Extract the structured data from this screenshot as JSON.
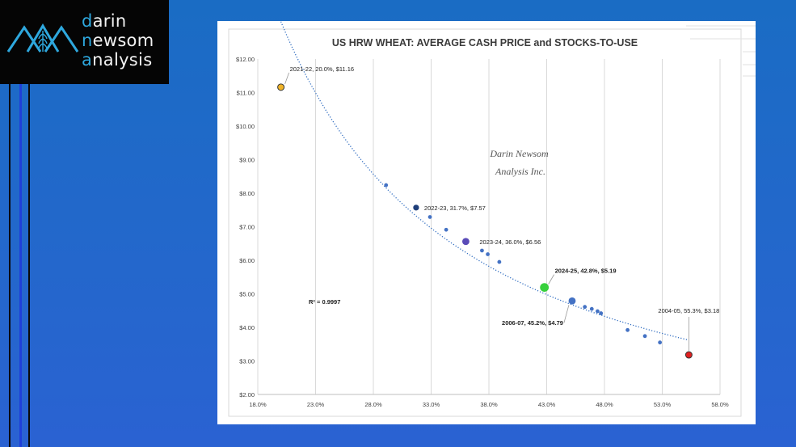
{
  "logo": {
    "lines": [
      {
        "first": "d",
        "rest": "arin"
      },
      {
        "first": "n",
        "rest": "ewsom"
      },
      {
        "first": "a",
        "rest": "nalysis"
      }
    ],
    "accent_color": "#2ea8de"
  },
  "chart_data": {
    "type": "scatter",
    "title": "US HRW WHEAT: AVERAGE CASH PRICE and STOCKS-TO-USE",
    "xlabel": "",
    "ylabel": "",
    "xlim": [
      18.0,
      58.0
    ],
    "ylim": [
      2.0,
      12.0
    ],
    "x_ticks": [
      "18.0%",
      "23.0%",
      "28.0%",
      "33.0%",
      "38.0%",
      "43.0%",
      "48.0%",
      "53.0%",
      "58.0%"
    ],
    "y_ticks": [
      "$2.00",
      "$3.00",
      "$4.00",
      "$5.00",
      "$6.00",
      "$7.00",
      "$8.00",
      "$9.00",
      "$10.00",
      "$11.00",
      "$12.00"
    ],
    "grid": "vertical",
    "trendline": {
      "style": "dotted",
      "color": "#2f6cc0"
    },
    "r_squared_label": "R² = 0.9997",
    "watermark": [
      "Darin Newsom",
      "Analysis Inc."
    ],
    "points": [
      {
        "x": 20.0,
        "y": 11.16,
        "color": "#f0b429",
        "size": "highlight",
        "label": "2021-22, 20.0%, $11.16",
        "bold": false
      },
      {
        "x": 29.1,
        "y": 8.24,
        "color": "#4472c4",
        "size": "small",
        "label": "",
        "bold": false
      },
      {
        "x": 31.7,
        "y": 7.57,
        "color": "#1f3f7a",
        "size": "medium",
        "label": "2022-23, 31.7%, $7.57",
        "bold": false
      },
      {
        "x": 32.9,
        "y": 7.29,
        "color": "#4472c4",
        "size": "small",
        "label": "",
        "bold": false
      },
      {
        "x": 34.3,
        "y": 6.91,
        "color": "#4472c4",
        "size": "small",
        "label": "",
        "bold": false
      },
      {
        "x": 36.0,
        "y": 6.56,
        "color": "#5a4bb8",
        "size": "large",
        "label": "2023-24, 36.0%, $6.56",
        "bold": false
      },
      {
        "x": 37.4,
        "y": 6.29,
        "color": "#4472c4",
        "size": "small",
        "label": "",
        "bold": false
      },
      {
        "x": 37.9,
        "y": 6.18,
        "color": "#4472c4",
        "size": "small",
        "label": "",
        "bold": false
      },
      {
        "x": 38.9,
        "y": 5.95,
        "color": "#4472c4",
        "size": "small",
        "label": "",
        "bold": false
      },
      {
        "x": 42.8,
        "y": 5.19,
        "color": "#37d03c",
        "size": "xlarge",
        "label": "2024-25, 42.8%, $5.19",
        "bold": true
      },
      {
        "x": 45.2,
        "y": 4.79,
        "color": "#4472c4",
        "size": "large",
        "label": "2006-07, 45.2%, $4.79",
        "bold": true
      },
      {
        "x": 46.3,
        "y": 4.61,
        "color": "#4472c4",
        "size": "small",
        "label": "",
        "bold": false
      },
      {
        "x": 46.9,
        "y": 4.55,
        "color": "#4472c4",
        "size": "small",
        "label": "",
        "bold": false
      },
      {
        "x": 47.4,
        "y": 4.48,
        "color": "#4472c4",
        "size": "small",
        "label": "",
        "bold": false
      },
      {
        "x": 47.7,
        "y": 4.42,
        "color": "#4472c4",
        "size": "small",
        "label": "",
        "bold": false
      },
      {
        "x": 50.0,
        "y": 3.92,
        "color": "#4472c4",
        "size": "small",
        "label": "",
        "bold": false
      },
      {
        "x": 51.5,
        "y": 3.74,
        "color": "#4472c4",
        "size": "small",
        "label": "",
        "bold": false
      },
      {
        "x": 52.8,
        "y": 3.55,
        "color": "#4472c4",
        "size": "small",
        "label": "",
        "bold": false
      },
      {
        "x": 55.3,
        "y": 3.18,
        "color": "#e02020",
        "size": "highlight",
        "label": "2004-05, 55.3%, $3.18",
        "bold": false
      }
    ]
  }
}
